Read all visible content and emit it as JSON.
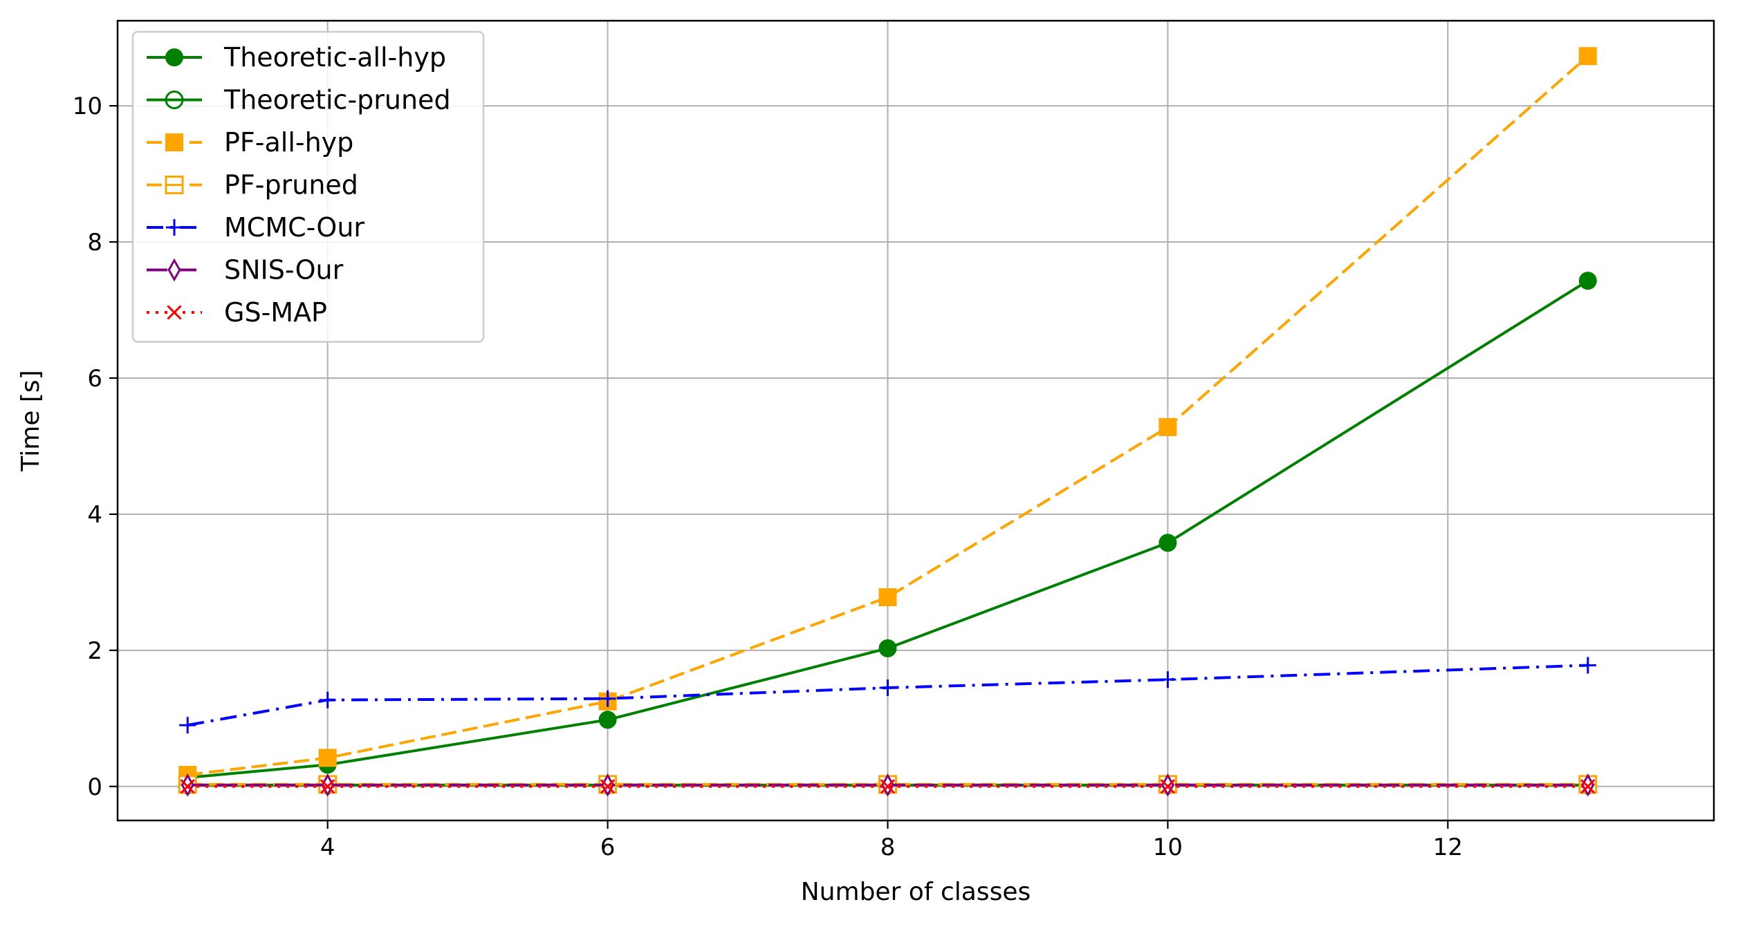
{
  "chart_data": {
    "type": "line",
    "title": "",
    "xlabel": "Number of classes",
    "ylabel": "Time [s]",
    "xlim": [
      2.5,
      13.9
    ],
    "ylim": [
      -0.5,
      11.25
    ],
    "xticks": [
      4,
      6,
      8,
      10,
      12
    ],
    "yticks": [
      0,
      2,
      4,
      6,
      8,
      10
    ],
    "grid": true,
    "legend_position": "top-left",
    "x": [
      3,
      4,
      6,
      8,
      10,
      13
    ],
    "series": [
      {
        "name": "Theoretic-all-hyp",
        "values": [
          0.13,
          0.32,
          0.98,
          2.03,
          3.58,
          7.43
        ],
        "color": "#008000",
        "dash": "solid",
        "marker": "circle-filled"
      },
      {
        "name": "Theoretic-pruned",
        "values": [
          0.02,
          0.02,
          0.02,
          0.02,
          0.02,
          0.02
        ],
        "color": "#008000",
        "dash": "solid",
        "marker": "circle-open"
      },
      {
        "name": "PF-all-hyp",
        "values": [
          0.17,
          0.42,
          1.25,
          2.78,
          5.28,
          10.73
        ],
        "color": "#ffa500",
        "dash": "dashed",
        "marker": "square-filled"
      },
      {
        "name": "PF-pruned",
        "values": [
          0.03,
          0.03,
          0.03,
          0.03,
          0.03,
          0.03
        ],
        "color": "#ffa500",
        "dash": "dashed",
        "marker": "square-half"
      },
      {
        "name": "MCMC-Our",
        "values": [
          0.9,
          1.27,
          1.29,
          1.45,
          1.57,
          1.78
        ],
        "color": "#0000ff",
        "dash": "dashdot",
        "marker": "plus"
      },
      {
        "name": "SNIS-Our",
        "values": [
          0.02,
          0.02,
          0.02,
          0.02,
          0.02,
          0.02
        ],
        "color": "#800080",
        "dash": "longdash",
        "marker": "thin-diamond-open"
      },
      {
        "name": "GS-MAP",
        "values": [
          0.0,
          0.0,
          0.0,
          0.0,
          0.0,
          0.0
        ],
        "color": "#ff0000",
        "dash": "dotted",
        "marker": "x"
      }
    ]
  }
}
